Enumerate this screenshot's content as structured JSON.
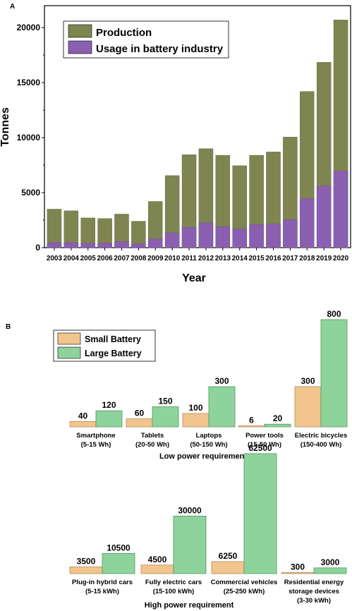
{
  "panel_a": {
    "label": "A",
    "chart_data": {
      "type": "bar",
      "categories": [
        "2003",
        "2004",
        "2005",
        "2006",
        "2007",
        "2008",
        "2009",
        "2010",
        "2011",
        "2012",
        "2013",
        "2014",
        "2015",
        "2016",
        "2017",
        "2018",
        "2019",
        "2020"
      ],
      "series": [
        {
          "name": "Production",
          "color": "#7e8551",
          "values": [
            3500,
            3350,
            2700,
            2650,
            3050,
            2400,
            4200,
            6550,
            8450,
            9000,
            8400,
            7450,
            8400,
            8700,
            10050,
            14200,
            16850,
            20700
          ]
        },
        {
          "name": "Usage in battery industry",
          "color": "#8a5fb0",
          "values": [
            450,
            450,
            400,
            400,
            550,
            350,
            800,
            1350,
            1850,
            2250,
            1900,
            1700,
            2100,
            2150,
            2550,
            4450,
            5600,
            6950
          ]
        }
      ],
      "xlabel": "Year",
      "ylabel": "Tonnes",
      "ylim": [
        0,
        22000
      ],
      "yticks": [
        0,
        5000,
        10000,
        15000,
        20000
      ],
      "overlay": true,
      "legend": "top-left"
    }
  },
  "panel_b": {
    "label": "B",
    "chart_data": [
      {
        "type": "bar",
        "title": "Low power requirement",
        "categories": [
          "Smartphone (5-15 Wh)",
          "Tablets (20-50 Wh)",
          "Laptops (50-150 Wh)",
          "Power tools (15-50 Wh)",
          "Electric bicycles (150-400 Wh)"
        ],
        "category_lines": [
          [
            "Smartphone",
            "(5-15 Wh)"
          ],
          [
            "Tablets",
            "(20-50 Wh)"
          ],
          [
            "Laptops",
            "(50-150 Wh)"
          ],
          [
            "Power tools",
            "(15-50 Wh)"
          ],
          [
            "Electric bicycles",
            "(150-400 Wh)"
          ]
        ],
        "series": [
          {
            "name": "Small Battery",
            "color": "#f2c48e",
            "values": [
              40,
              60,
              100,
              6,
              300
            ]
          },
          {
            "name": "Large Battery",
            "color": "#8fd39c",
            "values": [
              120,
              150,
              300,
              20,
              800
            ]
          }
        ],
        "legend": "top-left"
      },
      {
        "type": "bar",
        "title": "High power requirement",
        "categories": [
          "Plug-in hybrid cars (5-15 kWh)",
          "Fully electric cars (15-100 kWh)",
          "Commercial vehicles (25-250 kWh)",
          "Residential energy storage devices (3-30 kWh)"
        ],
        "category_lines": [
          [
            "Plug-in hybrid cars",
            "(5-15 kWh)"
          ],
          [
            "Fully electric cars",
            "(15-100 kWh)"
          ],
          [
            "Commercial vehicles",
            "(25-250 kWh)"
          ],
          [
            "Residential energy",
            "storage devices",
            "(3-30 kWh)"
          ]
        ],
        "series": [
          {
            "name": "Small Battery",
            "color": "#f2c48e",
            "values": [
              3500,
              4500,
              6250,
              300
            ]
          },
          {
            "name": "Large Battery",
            "color": "#8fd39c",
            "values": [
              10500,
              30000,
              62500,
              3000
            ]
          }
        ]
      }
    ]
  }
}
